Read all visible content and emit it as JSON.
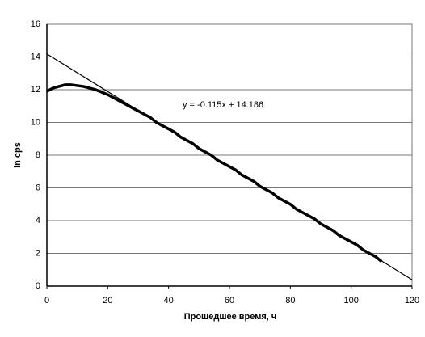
{
  "chart_data": {
    "type": "line",
    "xlabel": "Прошедшее время, ч",
    "ylabel": "ln cps",
    "annotation": "y = -0.115x + 14.186",
    "series": [
      {
        "name": "data",
        "color": "#000000",
        "x": [
          0,
          2,
          4,
          6,
          8,
          10,
          12,
          14,
          16,
          18,
          20,
          22,
          24,
          26,
          28,
          30,
          32,
          34,
          36,
          38,
          40,
          42,
          44,
          46,
          48,
          50,
          52,
          54,
          56,
          58,
          60,
          62,
          64,
          66,
          68,
          70,
          72,
          74,
          76,
          78,
          80,
          82,
          84,
          86,
          88,
          90,
          92,
          94,
          96,
          98,
          100,
          102,
          104,
          106,
          108,
          110
        ],
        "values": [
          11.9,
          12.1,
          12.2,
          12.3,
          12.3,
          12.25,
          12.2,
          12.1,
          12.0,
          11.85,
          11.7,
          11.5,
          11.3,
          11.1,
          10.9,
          10.7,
          10.5,
          10.3,
          10.0,
          9.8,
          9.6,
          9.4,
          9.1,
          8.9,
          8.7,
          8.4,
          8.2,
          8.0,
          7.7,
          7.5,
          7.3,
          7.1,
          6.8,
          6.6,
          6.4,
          6.1,
          5.9,
          5.7,
          5.4,
          5.2,
          5.0,
          4.7,
          4.5,
          4.3,
          4.1,
          3.8,
          3.6,
          3.4,
          3.1,
          2.9,
          2.7,
          2.5,
          2.2,
          2.0,
          1.8,
          1.5
        ]
      },
      {
        "name": "trend",
        "color": "#000000",
        "x": [
          0,
          120
        ],
        "values": [
          14.186,
          0.386
        ]
      }
    ],
    "xlim": [
      0,
      120
    ],
    "xticks": [
      0,
      20,
      40,
      60,
      80,
      100,
      120
    ],
    "ylim": [
      0,
      16
    ],
    "yticks": [
      0,
      2,
      4,
      6,
      8,
      10,
      12,
      14,
      16
    ],
    "grid": true
  }
}
